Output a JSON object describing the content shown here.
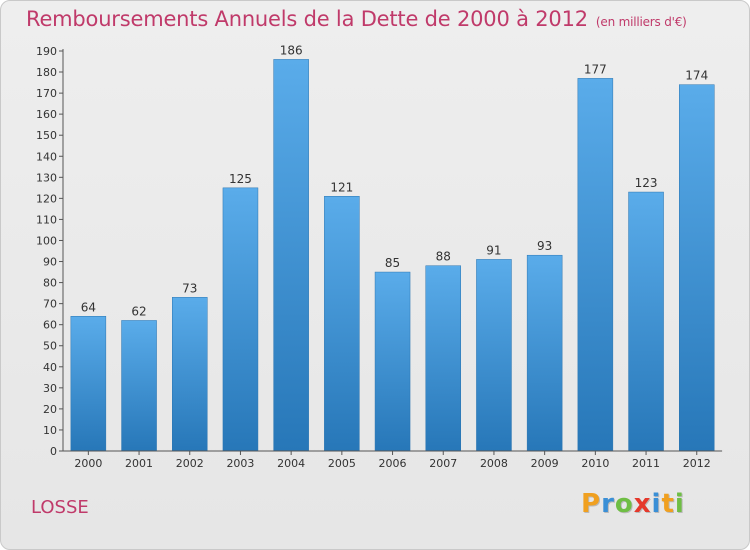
{
  "title": "Remboursements Annuels de la Dette de 2000 à 2012",
  "unit": "(en milliers d'€)",
  "city": "LOSSE",
  "logo": {
    "letters": [
      "P",
      "r",
      "o",
      "x",
      "i",
      "t",
      "i"
    ],
    "colors": [
      "#f0a020",
      "#3a8fd6",
      "#6fbe44",
      "#e5382b",
      "#3a8fd6",
      "#f0a020",
      "#6fbe44"
    ]
  },
  "colors": {
    "bar": "#3d93d6",
    "title": "#c03a6a"
  },
  "chart_data": {
    "type": "bar",
    "categories": [
      "2000",
      "2001",
      "2002",
      "2003",
      "2004",
      "2005",
      "2006",
      "2007",
      "2008",
      "2009",
      "2010",
      "2011",
      "2012"
    ],
    "values": [
      64,
      62,
      73,
      125,
      186,
      121,
      85,
      88,
      91,
      93,
      177,
      123,
      174
    ],
    "ylim": [
      0,
      190
    ],
    "ytick_step": 10,
    "grid": false
  }
}
